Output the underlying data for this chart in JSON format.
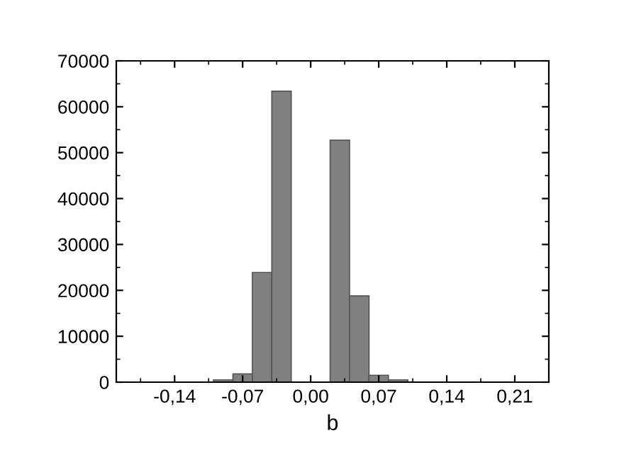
{
  "chart_data": {
    "type": "histogram",
    "xlabel": "b",
    "bins": [
      -0.1,
      -0.08,
      -0.06,
      -0.04,
      -0.02,
      0.0,
      0.02,
      0.04,
      0.06,
      0.08,
      0.1
    ],
    "values": [
      500,
      1800,
      23900,
      63400,
      0,
      0,
      52700,
      18800,
      1500,
      500
    ],
    "color": "#808080",
    "xlim": [
      -0.2,
      0.245
    ],
    "xticks": [
      {
        "value": -0.14,
        "label": "-0,14"
      },
      {
        "value": -0.07,
        "label": "-0,07"
      },
      {
        "value": 0.0,
        "label": "0,00"
      },
      {
        "value": 0.07,
        "label": "0,07"
      },
      {
        "value": 0.14,
        "label": "0,14"
      },
      {
        "value": 0.21,
        "label": "0,21"
      }
    ],
    "ylim": [
      0,
      70000
    ],
    "yticks": [
      0,
      10000,
      20000,
      30000,
      40000,
      50000,
      60000,
      70000
    ],
    "grid": false
  }
}
